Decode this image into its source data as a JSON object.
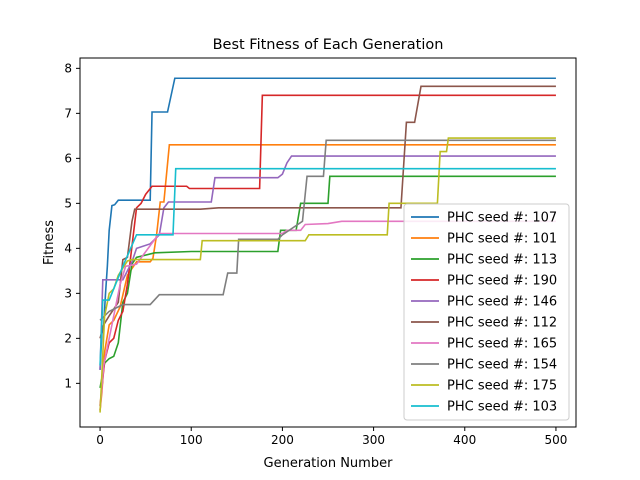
{
  "chart_data": {
    "type": "line",
    "title": "Best Fitness of Each Generation",
    "xlabel": "Generation Number",
    "ylabel": "Fitness",
    "xlim": [
      -22,
      522
    ],
    "ylim": [
      0.03,
      8.23
    ],
    "xticks": [
      0,
      100,
      200,
      300,
      400,
      500
    ],
    "yticks": [
      1,
      2,
      3,
      4,
      5,
      6,
      7,
      8
    ],
    "legend_position": "lower-right",
    "grid": false,
    "series": [
      {
        "name": "PHC seed #: 107",
        "color": "#1f77b4",
        "points": [
          [
            0,
            1.3
          ],
          [
            2,
            2.1
          ],
          [
            4,
            2.3
          ],
          [
            6,
            3.0
          ],
          [
            8,
            3.6
          ],
          [
            10,
            4.4
          ],
          [
            13,
            4.95
          ],
          [
            16,
            4.97
          ],
          [
            20,
            5.07
          ],
          [
            55,
            5.07
          ],
          [
            57,
            7.03
          ],
          [
            61,
            7.03
          ],
          [
            65,
            7.03
          ],
          [
            74,
            7.03
          ],
          [
            82,
            7.78
          ],
          [
            500,
            7.78
          ]
        ]
      },
      {
        "name": "PHC seed #: 101",
        "color": "#ff7f0e",
        "points": [
          [
            0,
            0.4
          ],
          [
            2,
            0.8
          ],
          [
            5,
            1.7
          ],
          [
            10,
            2.3
          ],
          [
            15,
            2.4
          ],
          [
            22,
            2.7
          ],
          [
            30,
            3.4
          ],
          [
            40,
            3.7
          ],
          [
            55,
            3.7
          ],
          [
            58,
            3.78
          ],
          [
            62,
            4.3
          ],
          [
            66,
            5.03
          ],
          [
            70,
            5.03
          ],
          [
            76,
            6.3
          ],
          [
            500,
            6.3
          ]
        ]
      },
      {
        "name": "PHC seed #: 113",
        "color": "#2ca02c",
        "points": [
          [
            0,
            0.9
          ],
          [
            5,
            1.45
          ],
          [
            10,
            1.55
          ],
          [
            15,
            1.6
          ],
          [
            20,
            1.9
          ],
          [
            25,
            2.8
          ],
          [
            30,
            3.0
          ],
          [
            35,
            3.65
          ],
          [
            40,
            3.8
          ],
          [
            60,
            3.9
          ],
          [
            100,
            3.93
          ],
          [
            195,
            3.93
          ],
          [
            198,
            4.4
          ],
          [
            215,
            4.4
          ],
          [
            220,
            5.0
          ],
          [
            250,
            5.0
          ],
          [
            252,
            5.6
          ],
          [
            500,
            5.6
          ]
        ]
      },
      {
        "name": "PHC seed #: 190",
        "color": "#d62728",
        "points": [
          [
            0,
            0.5
          ],
          [
            5,
            1.5
          ],
          [
            10,
            1.9
          ],
          [
            15,
            2.0
          ],
          [
            20,
            2.4
          ],
          [
            25,
            2.6
          ],
          [
            30,
            3.2
          ],
          [
            40,
            4.9
          ],
          [
            45,
            5.0
          ],
          [
            50,
            5.2
          ],
          [
            57,
            5.38
          ],
          [
            95,
            5.38
          ],
          [
            98,
            5.33
          ],
          [
            175,
            5.33
          ],
          [
            178,
            7.4
          ],
          [
            500,
            7.4
          ]
        ]
      },
      {
        "name": "PHC seed #: 146",
        "color": "#9467bd",
        "points": [
          [
            0,
            1.3
          ],
          [
            3,
            3.3
          ],
          [
            10,
            3.3
          ],
          [
            15,
            3.3
          ],
          [
            25,
            3.3
          ],
          [
            35,
            3.7
          ],
          [
            40,
            4.0
          ],
          [
            55,
            4.1
          ],
          [
            65,
            4.3
          ],
          [
            70,
            4.9
          ],
          [
            75,
            5.03
          ],
          [
            122,
            5.03
          ],
          [
            126,
            5.57
          ],
          [
            195,
            5.57
          ],
          [
            200,
            5.65
          ],
          [
            205,
            5.9
          ],
          [
            210,
            6.05
          ],
          [
            500,
            6.05
          ]
        ]
      },
      {
        "name": "PHC seed #: 112",
        "color": "#8c564b",
        "points": [
          [
            0,
            2.0
          ],
          [
            4,
            2.3
          ],
          [
            10,
            2.5
          ],
          [
            20,
            2.8
          ],
          [
            25,
            3.75
          ],
          [
            30,
            3.8
          ],
          [
            35,
            4.6
          ],
          [
            38,
            4.87
          ],
          [
            110,
            4.87
          ],
          [
            130,
            4.9
          ],
          [
            330,
            4.9
          ],
          [
            336,
            6.8
          ],
          [
            345,
            6.8
          ],
          [
            352,
            7.6
          ],
          [
            500,
            7.6
          ]
        ]
      },
      {
        "name": "PHC seed #: 165",
        "color": "#e377c2",
        "points": [
          [
            0,
            0.4
          ],
          [
            4,
            1.4
          ],
          [
            10,
            2.0
          ],
          [
            15,
            2.5
          ],
          [
            22,
            3.2
          ],
          [
            28,
            3.6
          ],
          [
            40,
            3.65
          ],
          [
            60,
            4.2
          ],
          [
            65,
            4.33
          ],
          [
            200,
            4.33
          ],
          [
            205,
            4.4
          ],
          [
            220,
            4.4
          ],
          [
            225,
            4.53
          ],
          [
            250,
            4.55
          ],
          [
            265,
            4.6
          ],
          [
            500,
            4.6
          ]
        ]
      },
      {
        "name": "PHC seed #: 154",
        "color": "#7f7f7f",
        "points": [
          [
            0,
            2.4
          ],
          [
            5,
            2.5
          ],
          [
            10,
            2.6
          ],
          [
            25,
            2.75
          ],
          [
            55,
            2.75
          ],
          [
            65,
            2.97
          ],
          [
            135,
            2.97
          ],
          [
            140,
            3.45
          ],
          [
            150,
            3.45
          ],
          [
            152,
            4.2
          ],
          [
            195,
            4.2
          ],
          [
            200,
            4.3
          ],
          [
            222,
            4.6
          ],
          [
            227,
            5.6
          ],
          [
            245,
            5.6
          ],
          [
            248,
            6.4
          ],
          [
            500,
            6.4
          ]
        ]
      },
      {
        "name": "PHC seed #: 175",
        "color": "#bcbd22",
        "points": [
          [
            0,
            0.35
          ],
          [
            5,
            2.5
          ],
          [
            10,
            3.0
          ],
          [
            15,
            3.1
          ],
          [
            20,
            3.4
          ],
          [
            30,
            3.72
          ],
          [
            35,
            3.75
          ],
          [
            110,
            3.75
          ],
          [
            112,
            4.17
          ],
          [
            225,
            4.17
          ],
          [
            229,
            4.3
          ],
          [
            315,
            4.3
          ],
          [
            317,
            5.0
          ],
          [
            370,
            5.0
          ],
          [
            373,
            6.15
          ],
          [
            380,
            6.15
          ],
          [
            382,
            6.45
          ],
          [
            500,
            6.45
          ]
        ]
      },
      {
        "name": "PHC seed #: 103",
        "color": "#17becf",
        "points": [
          [
            0,
            1.4
          ],
          [
            3,
            2.85
          ],
          [
            10,
            2.85
          ],
          [
            25,
            3.6
          ],
          [
            40,
            4.3
          ],
          [
            80,
            4.3
          ],
          [
            83,
            5.77
          ],
          [
            500,
            5.77
          ]
        ]
      }
    ]
  }
}
